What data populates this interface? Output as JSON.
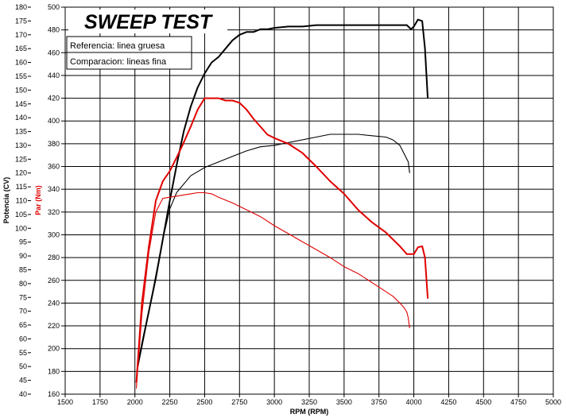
{
  "chart_data": {
    "type": "line",
    "title": "SWEEP TEST",
    "xlabel": "RPM (RPM)",
    "ylabel_left": "Potencia (CV)",
    "ylabel_right": "Par (Nm)",
    "xlim": [
      1500,
      5000
    ],
    "ylim_power": [
      40,
      180
    ],
    "ylim_torque": [
      160,
      500
    ],
    "x_ticks": [
      "1500",
      "1750",
      "2000",
      "2250",
      "2500",
      "2750",
      "3000",
      "3250",
      "3500",
      "3750",
      "4000",
      "4250",
      "4500",
      "4750",
      "5000"
    ],
    "power_ticks": [
      "180",
      "175",
      "170",
      "165",
      "160",
      "155",
      "150",
      "145",
      "140",
      "135",
      "130",
      "125",
      "120",
      "115",
      "110",
      "105",
      "100",
      "95",
      "90",
      "85",
      "80",
      "75",
      "70",
      "65",
      "60",
      "55",
      "50",
      "45",
      "40"
    ],
    "torque_ticks": [
      "500",
      "480",
      "460",
      "440",
      "420",
      "400",
      "380",
      "360",
      "340",
      "320",
      "300",
      "280",
      "260",
      "240",
      "220",
      "200",
      "180",
      "160"
    ],
    "legend": [
      "Referencia: linea gruesa",
      "Comparacion: lineas fina"
    ],
    "grid": true,
    "colors": {
      "power": "#000000",
      "torque": "#e00000"
    },
    "series": [
      {
        "name": "Referencia: linea gruesa",
        "quantity": "power",
        "x": [
          2020,
          2050,
          2100,
          2150,
          2200,
          2250,
          2300,
          2350,
          2400,
          2450,
          2500,
          2550,
          2600,
          2650,
          2700,
          2750,
          2800,
          2850,
          2900,
          2950,
          3000,
          3100,
          3200,
          3300,
          3400,
          3500,
          3600,
          3700,
          3800,
          3850,
          3900,
          3950,
          3980,
          4000,
          4030,
          4060,
          4080,
          4100
        ],
        "values": [
          50,
          58,
          70,
          82,
          96,
          110,
          123,
          135,
          144,
          151,
          156,
          160,
          162,
          165,
          168,
          170,
          171,
          171,
          172,
          172,
          172.5,
          173,
          173,
          173.5,
          173.5,
          173.5,
          173.5,
          173.5,
          173.5,
          173.5,
          173.5,
          173.5,
          172,
          173,
          175.5,
          175,
          165,
          147
        ]
      },
      {
        "name": "Comparacion: lineas fina",
        "quantity": "power",
        "x": [
          2020,
          2050,
          2100,
          2150,
          2200,
          2250,
          2300,
          2400,
          2500,
          2600,
          2700,
          2800,
          2900,
          3000,
          3100,
          3200,
          3300,
          3400,
          3500,
          3600,
          3700,
          3800,
          3850,
          3900,
          3930,
          3960,
          3970
        ],
        "values": [
          50,
          57,
          70,
          83,
          96,
          107,
          113,
          119,
          122,
          124,
          126,
          128,
          129.5,
          130,
          131,
          132,
          133,
          134,
          134,
          134,
          133.5,
          133,
          132,
          130,
          127,
          124,
          120
        ]
      },
      {
        "name": "Referencia: linea gruesa",
        "quantity": "torque",
        "x": [
          2010,
          2050,
          2100,
          2150,
          2200,
          2250,
          2300,
          2350,
          2400,
          2450,
          2500,
          2550,
          2600,
          2650,
          2700,
          2750,
          2800,
          2850,
          2900,
          2950,
          3000,
          3100,
          3200,
          3300,
          3400,
          3500,
          3600,
          3700,
          3800,
          3900,
          3950,
          4000,
          4030,
          4060,
          4080,
          4100
        ],
        "values": [
          170,
          240,
          290,
          330,
          347,
          356,
          368,
          381,
          395,
          410,
          420,
          420,
          420,
          418,
          418,
          416,
          410,
          402,
          395,
          388,
          385,
          380,
          372,
          360,
          347,
          336,
          322,
          311,
          302,
          290,
          283,
          283,
          289,
          290,
          280,
          244
        ]
      },
      {
        "name": "Comparacion: lineas fina",
        "quantity": "torque",
        "x": [
          2010,
          2050,
          2100,
          2150,
          2200,
          2250,
          2300,
          2350,
          2400,
          2450,
          2500,
          2550,
          2600,
          2700,
          2800,
          2900,
          3000,
          3100,
          3200,
          3300,
          3400,
          3500,
          3600,
          3700,
          3800,
          3850,
          3900,
          3930,
          3950,
          3960,
          3970
        ],
        "values": [
          165,
          230,
          285,
          320,
          332,
          333,
          334,
          335,
          336,
          337,
          337,
          336,
          333,
          328,
          322,
          316,
          308,
          301,
          294,
          287,
          280,
          272,
          266,
          258,
          250,
          246,
          240,
          236,
          232,
          227,
          218
        ]
      }
    ]
  }
}
